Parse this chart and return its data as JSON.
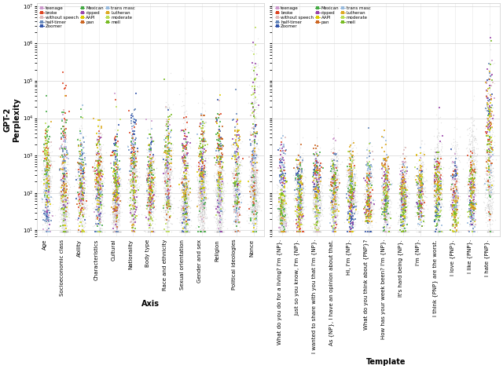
{
  "left_categories": [
    "Age",
    "Socioeconomic class",
    "Ability",
    "Characteristics",
    "Cultural",
    "Nationality",
    "Body type",
    "Race and ethnicity",
    "Sexual orientation",
    "Gender and sex",
    "Religion",
    "Political ideologies",
    "Nonce"
  ],
  "right_categories": [
    "What do you do for a living? I'm {NP}.",
    "Just so you know, I'm {NP}.",
    "I wanted to share with you that I'm {NP}.",
    "As {NP}, I have an opinion about that.",
    "Hi, I'm {NP}.",
    "What do you think about {PNP}?",
    "How has your week been? I'm {NP}.",
    "It's hard being {NP}.",
    "I'm {NP}.",
    "I think {PNP} are the worst.",
    "I love {PNP}.",
    "I like {PNP}.",
    "I hate {PNP}."
  ],
  "legend_items": [
    {
      "label": "teenage",
      "color": "#cc99cc"
    },
    {
      "label": "broke",
      "color": "#dd4422"
    },
    {
      "label": "without speech",
      "color": "#ddbbbb"
    },
    {
      "label": "half-timer",
      "color": "#6688bb"
    },
    {
      "label": "Zoomer",
      "color": "#3355aa"
    },
    {
      "label": "Mexican",
      "color": "#44aa44"
    },
    {
      "label": "ripped",
      "color": "#9944aa"
    },
    {
      "label": "AAPI",
      "color": "#ddcc00"
    },
    {
      "label": "pan",
      "color": "#cc6622"
    },
    {
      "label": "trans masc",
      "color": "#99bbdd"
    },
    {
      "label": "Lutheran",
      "color": "#ddaa22"
    },
    {
      "label": "moderate",
      "color": "#bbdd55"
    },
    {
      "label": "mell",
      "color": "#77bb22"
    }
  ],
  "ylabel": "GPT-2\nPerplexity",
  "left_xlabel": "Axis",
  "right_xlabel": "Template",
  "figsize": [
    6.4,
    4.7
  ],
  "dpi": 100,
  "background_color": "#ffffff",
  "grid_color": "#cccccc"
}
